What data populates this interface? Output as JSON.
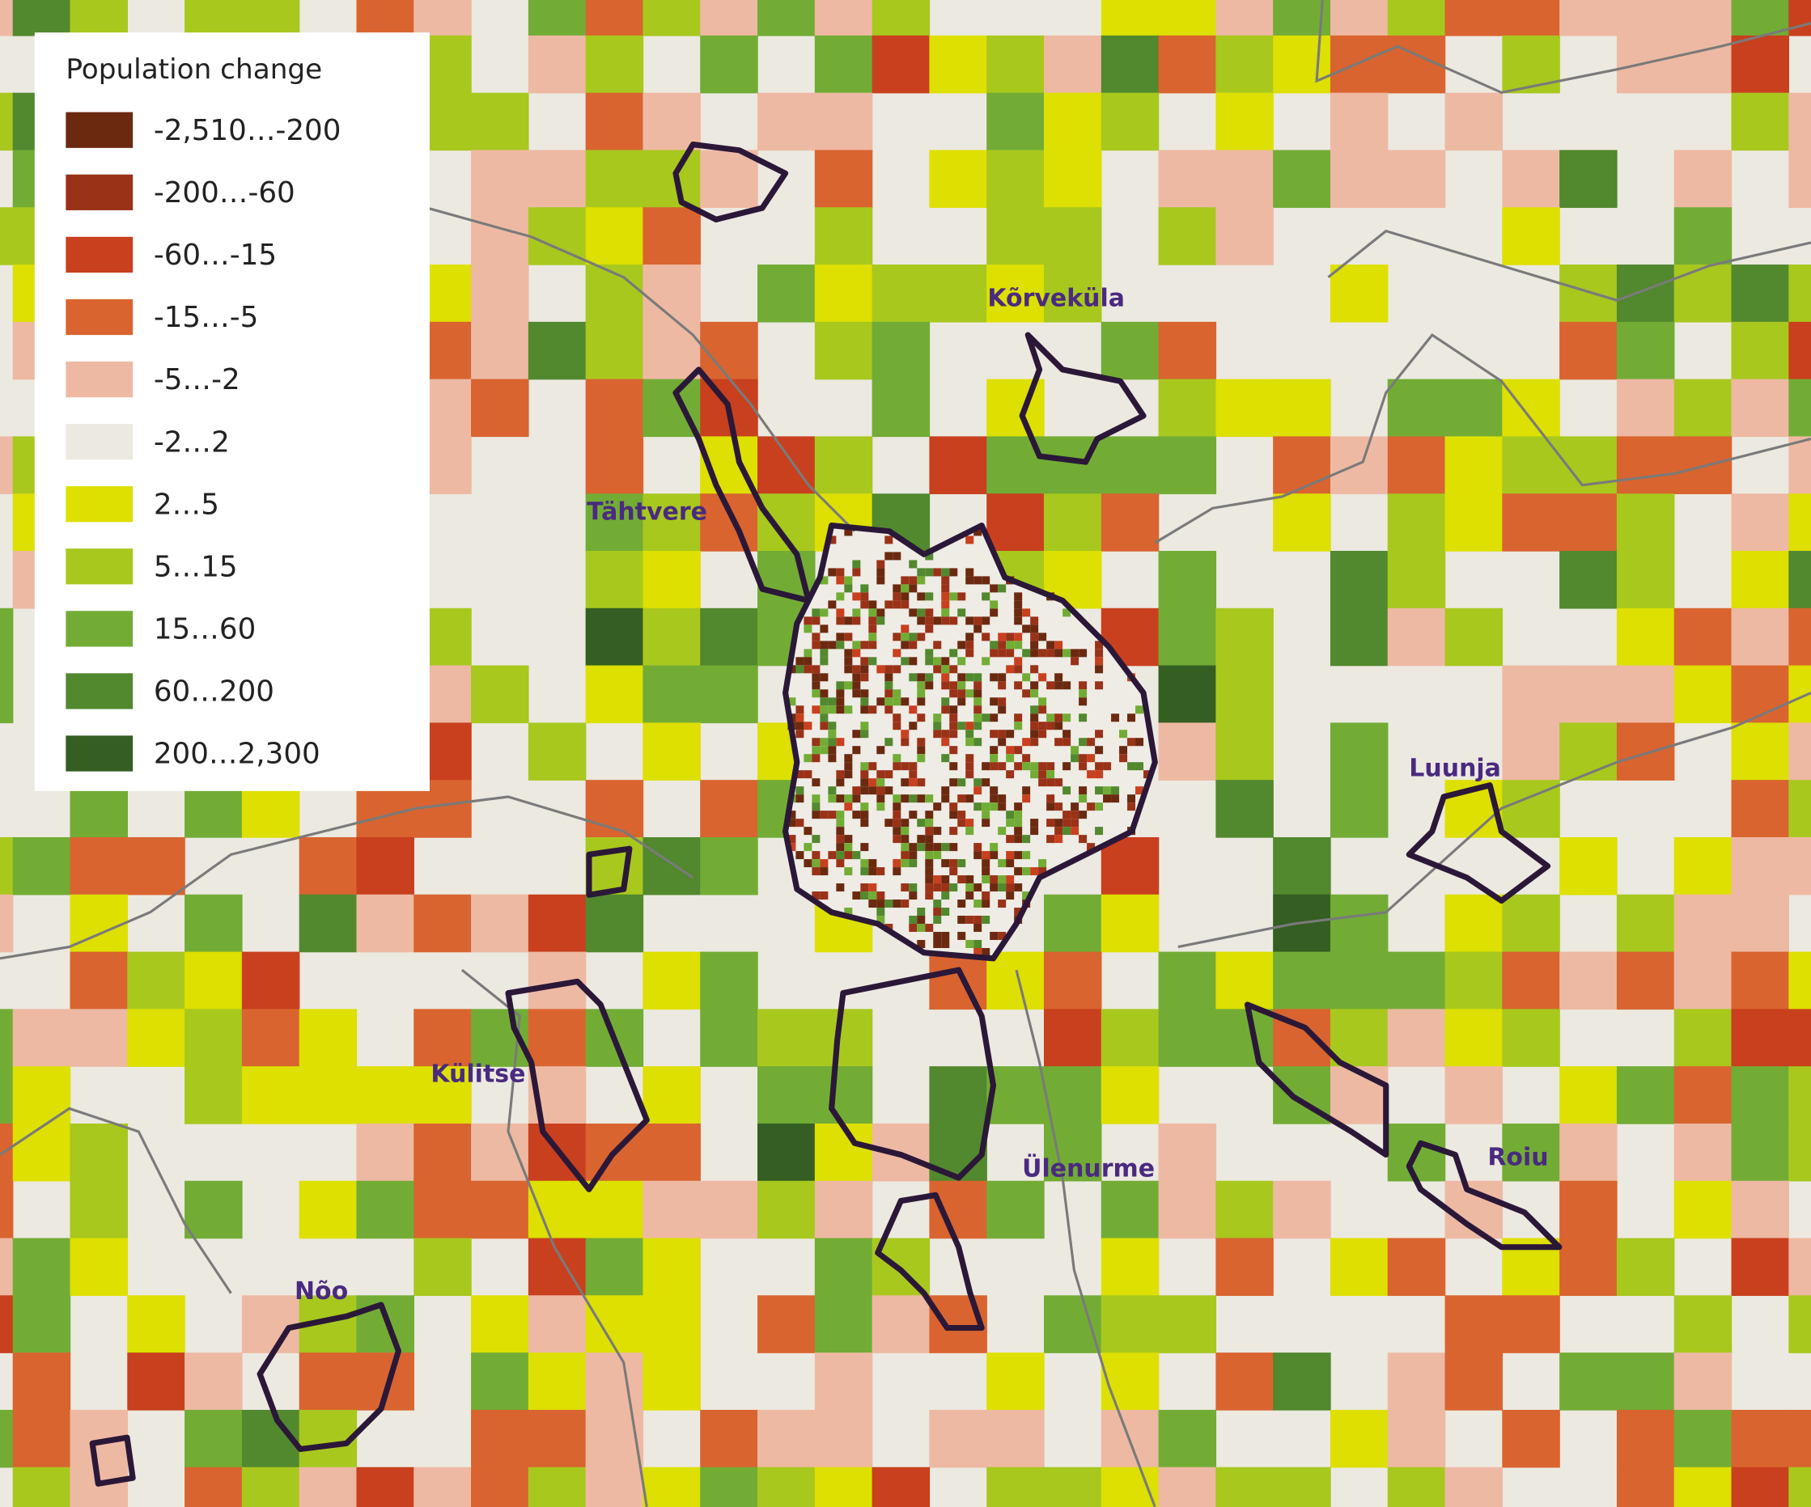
{
  "legend": {
    "title": "Population change",
    "items": [
      {
        "label": "-2,510…-200",
        "color": "#6b2a10"
      },
      {
        "label": "-200…-60",
        "color": "#9a3218"
      },
      {
        "label": "-60…-15",
        "color": "#c8401e"
      },
      {
        "label": "-15…-5",
        "color": "#d9642f"
      },
      {
        "label": "-5…-2",
        "color": "#eeb9a3"
      },
      {
        "label": "-2…2",
        "color": "#ece9e1"
      },
      {
        "label": "2…5",
        "color": "#dde000"
      },
      {
        "label": "5…15",
        "color": "#a8c81e"
      },
      {
        "label": "15…60",
        "color": "#72ac35"
      },
      {
        "label": "60…200",
        "color": "#52882e"
      },
      {
        "label": "200…2,300",
        "color": "#345e22"
      }
    ]
  },
  "places": [
    {
      "name": "Kõrveküla"
    },
    {
      "name": "Tähtvere"
    },
    {
      "name": "Luunja"
    },
    {
      "name": "Külitse"
    },
    {
      "name": "Ülenurme"
    },
    {
      "name": "Roiu"
    },
    {
      "name": "Nõo"
    }
  ]
}
